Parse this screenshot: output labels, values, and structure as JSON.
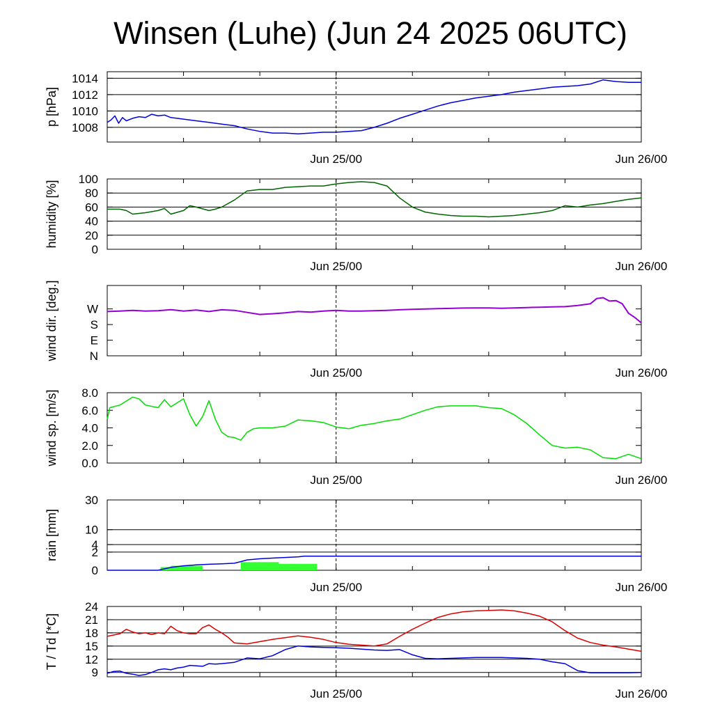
{
  "title": "Winsen (Luhe) (Jun 24 2025 06UTC)",
  "colors": {
    "pressure": "#0000dd",
    "humidity": "#006400",
    "wind_dir": "#9400d3",
    "wind_speed": "#00dd00",
    "rain_total": "#0000dd",
    "rain_bar": "#33ff33",
    "temperature": "#dd0000",
    "dewpoint": "#0000dd"
  },
  "chart_data": [
    {
      "type": "line",
      "ylabel": "p [hPa]",
      "ylim": [
        1006.2,
        1014.8
      ],
      "yticks": [
        1008,
        1010,
        1012,
        1014
      ],
      "ytick_labels": [
        "1008",
        "1010",
        "1012",
        "1014"
      ],
      "gridlines": [
        1008,
        1010,
        1012,
        1014
      ],
      "x_unit": "hours since Jun 24 06UTC",
      "xlim": [
        0,
        42
      ],
      "xtick_labels": [
        {
          "x": 18,
          "label": "Jun 25/00"
        },
        {
          "x": 42,
          "label": "Jun 26/00"
        }
      ],
      "series": [
        {
          "key": "pressure",
          "x": [
            0,
            0.3,
            0.6,
            0.9,
            1.2,
            1.5,
            2,
            2.5,
            3,
            3.5,
            4,
            4.5,
            5,
            6,
            7,
            8,
            9,
            10,
            11,
            12,
            13,
            14,
            15,
            16,
            17,
            18,
            19,
            20,
            21,
            22,
            23,
            24,
            25,
            26,
            27,
            28,
            29,
            30,
            31,
            32,
            33,
            34,
            35,
            36,
            37,
            38,
            39,
            40,
            41,
            42
          ],
          "y": [
            1008.6,
            1008.9,
            1009.4,
            1008.5,
            1009.2,
            1008.8,
            1009.1,
            1009.3,
            1009.2,
            1009.6,
            1009.4,
            1009.5,
            1009.2,
            1009.0,
            1008.8,
            1008.6,
            1008.4,
            1008.2,
            1007.8,
            1007.5,
            1007.3,
            1007.3,
            1007.2,
            1007.3,
            1007.4,
            1007.4,
            1007.5,
            1007.6,
            1008.0,
            1008.5,
            1009.1,
            1009.6,
            1010.1,
            1010.6,
            1011.0,
            1011.3,
            1011.6,
            1011.8,
            1012.0,
            1012.3,
            1012.5,
            1012.7,
            1012.9,
            1013.0,
            1013.1,
            1013.3,
            1013.8,
            1013.6,
            1013.5,
            1013.5
          ]
        }
      ]
    },
    {
      "type": "line",
      "ylabel": "humidity [%]",
      "ylim": [
        0,
        100
      ],
      "yticks": [
        0,
        20,
        40,
        60,
        80,
        100
      ],
      "ytick_labels": [
        "0",
        "20",
        "40",
        "60",
        "80",
        "100"
      ],
      "gridlines": [
        20,
        40,
        60,
        80
      ],
      "x_unit": "hours since Jun 24 06UTC",
      "xlim": [
        0,
        42
      ],
      "xtick_labels": [
        {
          "x": 18,
          "label": "Jun 25/00"
        },
        {
          "x": 42,
          "label": "Jun 26/00"
        }
      ],
      "series": [
        {
          "key": "humidity",
          "x": [
            0,
            1,
            1.5,
            2,
            3,
            4,
            4.5,
            5,
            6,
            6.5,
            7,
            8,
            8.5,
            9,
            10,
            11,
            12,
            13,
            14,
            15,
            16,
            17,
            18,
            19,
            20,
            21,
            22,
            23,
            24,
            25,
            26,
            27,
            28,
            29,
            30,
            31,
            32,
            33,
            34,
            35,
            36,
            37,
            38,
            39,
            40,
            41,
            42
          ],
          "y": [
            57,
            57,
            55,
            50,
            52,
            55,
            58,
            50,
            55,
            62,
            60,
            55,
            57,
            60,
            70,
            83,
            85,
            85,
            88,
            89,
            90,
            90,
            93,
            95,
            96,
            95,
            90,
            73,
            60,
            53,
            50,
            48,
            47,
            47,
            46,
            47,
            48,
            50,
            52,
            55,
            62,
            60,
            63,
            65,
            68,
            71,
            73
          ]
        }
      ]
    },
    {
      "type": "line",
      "ylabel": "wind dir. [deg.]",
      "ylim": [
        0,
        405
      ],
      "yticks": [
        0,
        90,
        180,
        270
      ],
      "ytick_labels": [
        "N",
        "E",
        "S",
        "W"
      ],
      "gridlines": [],
      "x_unit": "hours since Jun 24 06UTC",
      "xlim": [
        0,
        42
      ],
      "xtick_labels": [
        {
          "x": 18,
          "label": "Jun 25/00"
        },
        {
          "x": 42,
          "label": "Jun 26/00"
        }
      ],
      "series": [
        {
          "key": "wind_dir",
          "x": [
            0,
            1,
            2,
            3,
            4,
            5,
            6,
            7,
            8,
            9,
            10,
            11,
            12,
            13,
            14,
            15,
            16,
            17,
            18,
            19,
            20,
            21,
            22,
            23,
            24,
            25,
            26,
            27,
            28,
            29,
            30,
            31,
            32,
            33,
            34,
            35,
            36,
            37,
            38,
            38.5,
            39,
            39.5,
            40,
            40.5,
            41,
            41.5,
            42
          ],
          "y": [
            255,
            258,
            262,
            258,
            260,
            266,
            258,
            264,
            255,
            265,
            262,
            250,
            238,
            242,
            248,
            255,
            252,
            258,
            262,
            258,
            258,
            260,
            262,
            265,
            268,
            270,
            272,
            273,
            275,
            276,
            276,
            274,
            276,
            278,
            280,
            282,
            283,
            290,
            300,
            330,
            335,
            315,
            318,
            300,
            245,
            220,
            190
          ]
        }
      ]
    },
    {
      "type": "line",
      "ylabel": "wind sp. [m/s]",
      "ylim": [
        0,
        8
      ],
      "yticks": [
        0,
        2,
        4,
        6,
        8
      ],
      "ytick_labels": [
        "0.0",
        "2.0",
        "4.0",
        "6.0",
        "8.0"
      ],
      "gridlines": [],
      "x_unit": "hours since Jun 24 06UTC",
      "xlim": [
        0,
        42
      ],
      "xtick_labels": [
        {
          "x": 18,
          "label": "Jun 25/00"
        },
        {
          "x": 42,
          "label": "Jun 26/00"
        }
      ],
      "series": [
        {
          "key": "wind_speed",
          "x": [
            0,
            0.2,
            1,
            2,
            2.5,
            3,
            4,
            4.5,
            5,
            6,
            6.5,
            7,
            7.5,
            8,
            8.5,
            9,
            9.5,
            10,
            10.5,
            11,
            11.5,
            12,
            13,
            14,
            15,
            16,
            17,
            18,
            19,
            20,
            21,
            22,
            23,
            24,
            25,
            26,
            27,
            28,
            29,
            30,
            31,
            32,
            33,
            34,
            35,
            36,
            37,
            38,
            39,
            40,
            41,
            42
          ],
          "y": [
            5.0,
            6.3,
            6.6,
            7.5,
            7.3,
            6.6,
            6.3,
            7.2,
            6.4,
            7.3,
            5.5,
            4.2,
            5.3,
            7.1,
            5.0,
            3.5,
            3.0,
            2.9,
            2.6,
            3.5,
            3.9,
            4.0,
            4.0,
            4.2,
            4.9,
            4.8,
            4.6,
            4.1,
            3.9,
            4.3,
            4.5,
            4.8,
            5.0,
            5.5,
            6.0,
            6.4,
            6.5,
            6.5,
            6.5,
            6.3,
            6.2,
            5.5,
            4.5,
            3.2,
            2.0,
            1.7,
            1.8,
            1.5,
            0.6,
            0.5,
            1.0,
            0.5
          ]
        }
      ]
    },
    {
      "type": "bar",
      "ylabel": "rain [mm]",
      "ylim": [
        0,
        30
      ],
      "y_scale": "power",
      "yticks": [
        0,
        2,
        4,
        10,
        30
      ],
      "ytick_labels": [
        "0",
        "2",
        "4",
        "10",
        "30"
      ],
      "gridlines": [
        2,
        4,
        10,
        30
      ],
      "x_unit": "hours since Jun 24 06UTC",
      "xlim": [
        0,
        42
      ],
      "xtick_labels": [
        {
          "x": 18,
          "label": "Jun 25/00"
        },
        {
          "x": 42,
          "label": "Jun 26/00"
        }
      ],
      "bars": [
        {
          "x0": 4.2,
          "x1": 5.0,
          "y": 0.06
        },
        {
          "x0": 5.0,
          "x1": 7.5,
          "y": 0.12
        },
        {
          "x0": 10.5,
          "x1": 13.5,
          "y": 0.4
        },
        {
          "x0": 13.5,
          "x1": 16.5,
          "y": 0.25
        }
      ],
      "series": [
        {
          "key": "rain_total",
          "x": [
            0,
            4,
            5,
            6,
            7,
            8,
            9,
            10,
            10.5,
            11,
            12,
            13,
            14,
            15,
            15.5,
            16,
            18,
            20,
            25,
            30,
            35,
            42
          ],
          "y": [
            0,
            0,
            0.05,
            0.12,
            0.18,
            0.22,
            0.25,
            0.3,
            0.45,
            0.65,
            0.8,
            0.9,
            1.0,
            1.1,
            1.2,
            1.2,
            1.2,
            1.2,
            1.2,
            1.2,
            1.2,
            1.2
          ]
        }
      ]
    },
    {
      "type": "line",
      "ylabel": "T / Td [*C]",
      "ylim": [
        8,
        24
      ],
      "yticks": [
        9,
        12,
        15,
        18,
        21,
        24
      ],
      "ytick_labels": [
        "9",
        "12",
        "15",
        "18",
        "21",
        "24"
      ],
      "gridlines": [
        9,
        12,
        15,
        18,
        21
      ],
      "x_unit": "hours since Jun 24 06UTC",
      "xlim": [
        0,
        42
      ],
      "xtick_labels": [
        {
          "x": 18,
          "label": "Jun 25/00"
        },
        {
          "x": 42,
          "label": "Jun 26/00"
        }
      ],
      "series": [
        {
          "key": "temperature",
          "x": [
            0,
            1,
            1.5,
            2,
            2.5,
            3,
            3.5,
            4,
            4.5,
            5,
            5.5,
            6,
            6.5,
            7,
            7.5,
            8,
            8.5,
            9,
            9.5,
            10,
            11,
            12,
            13,
            14,
            15,
            16,
            17,
            18,
            19,
            20,
            21,
            22,
            23,
            24,
            25,
            26,
            27,
            28,
            29,
            30,
            31,
            32,
            33,
            34,
            35,
            36,
            37,
            38,
            39,
            40,
            41,
            42
          ],
          "y": [
            17.2,
            17.8,
            18.8,
            18.2,
            17.8,
            18.0,
            17.6,
            18.0,
            17.8,
            19.5,
            18.5,
            18.0,
            17.8,
            17.8,
            19.2,
            19.8,
            18.8,
            18.0,
            17.0,
            15.7,
            15.5,
            16.0,
            16.5,
            16.9,
            17.3,
            17.0,
            16.5,
            15.8,
            15.4,
            15.2,
            15.0,
            15.5,
            17.2,
            18.8,
            20.2,
            21.5,
            22.3,
            22.8,
            23.0,
            23.1,
            23.2,
            23.0,
            22.5,
            21.8,
            20.5,
            18.5,
            16.8,
            15.8,
            15.2,
            14.8,
            14.3,
            13.8
          ]
        },
        {
          "key": "dewpoint",
          "x": [
            0,
            0.5,
            1,
            1.5,
            2,
            2.5,
            3,
            3.5,
            4,
            4.5,
            5,
            5.5,
            6,
            6.5,
            7,
            7.5,
            8,
            8.5,
            9,
            10,
            11,
            12,
            13,
            14,
            15,
            16,
            17,
            18,
            19,
            20,
            21,
            22,
            23,
            24,
            25,
            26,
            27,
            28,
            29,
            30,
            31,
            32,
            33,
            34,
            35,
            36,
            37,
            38,
            39,
            40,
            41,
            42
          ],
          "y": [
            8.8,
            9.2,
            9.3,
            8.8,
            8.6,
            8.3,
            8.5,
            9.0,
            9.6,
            9.8,
            9.6,
            10.0,
            10.2,
            10.6,
            10.5,
            10.4,
            11.0,
            10.9,
            11.0,
            11.3,
            12.3,
            12.1,
            12.8,
            14.2,
            15.0,
            14.8,
            14.7,
            14.6,
            14.5,
            14.3,
            14.1,
            14.0,
            14.2,
            13.0,
            12.2,
            12.1,
            12.2,
            12.3,
            12.4,
            12.4,
            12.4,
            12.3,
            12.2,
            12.0,
            11.4,
            11.0,
            9.4,
            8.9,
            8.9,
            8.9,
            8.9,
            9.0
          ]
        }
      ]
    }
  ]
}
